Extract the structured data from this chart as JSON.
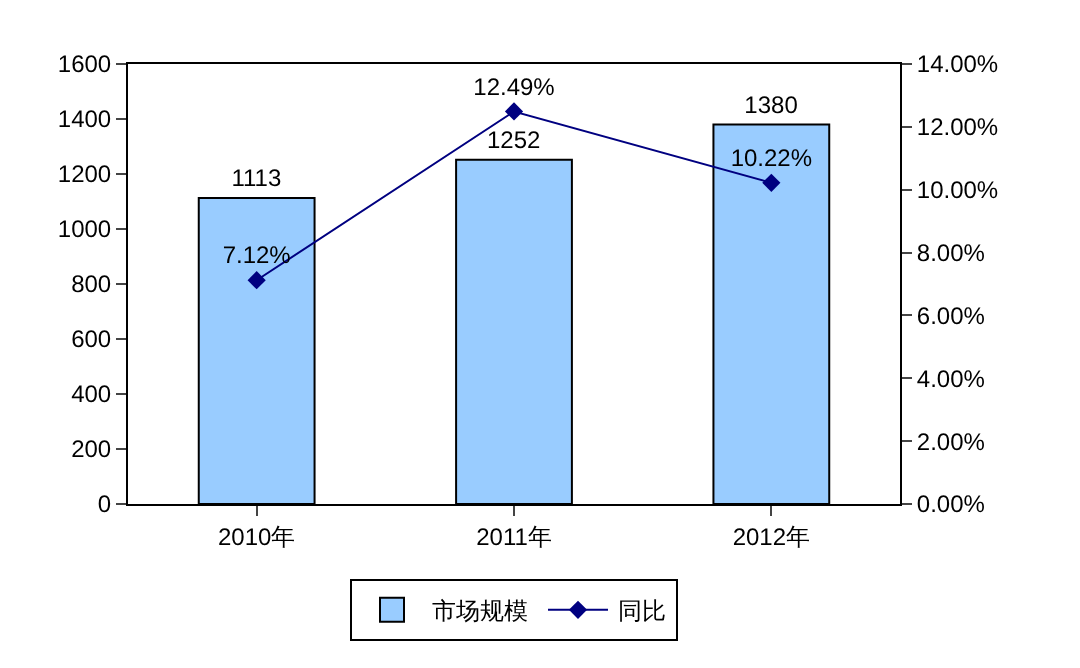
{
  "chart_data": {
    "type": "bar",
    "categories": [
      "2010年",
      "2011年",
      "2012年"
    ],
    "series": [
      {
        "name": "市场规模",
        "color": "#99ccff",
        "values": [
          1113,
          1252,
          1380
        ],
        "value_labels": [
          "1113",
          "1252",
          "1380"
        ]
      },
      {
        "name": "同比",
        "type": "line",
        "axis": "y2",
        "color": "#000080",
        "marker": "diamond",
        "values": [
          7.12,
          12.49,
          10.22
        ],
        "value_labels": [
          "7.12%",
          "12.49%",
          "10.22%"
        ]
      }
    ],
    "ylim": [
      0,
      1600
    ],
    "yticks": [
      0,
      200,
      400,
      600,
      800,
      1000,
      1200,
      1400,
      1600
    ],
    "y2lim": [
      0,
      14
    ],
    "y2ticks": [
      {
        "value": 0,
        "label": "0.00%"
      },
      {
        "value": 2,
        "label": "2.00%"
      },
      {
        "value": 4,
        "label": "4.00%"
      },
      {
        "value": 6,
        "label": "6.00%"
      },
      {
        "value": 8,
        "label": "8.00%"
      },
      {
        "value": 10,
        "label": "10.00%"
      },
      {
        "value": 12,
        "label": "12.00%"
      },
      {
        "value": 14,
        "label": "14.00%"
      }
    ],
    "grid": false,
    "legend": "bottom"
  }
}
